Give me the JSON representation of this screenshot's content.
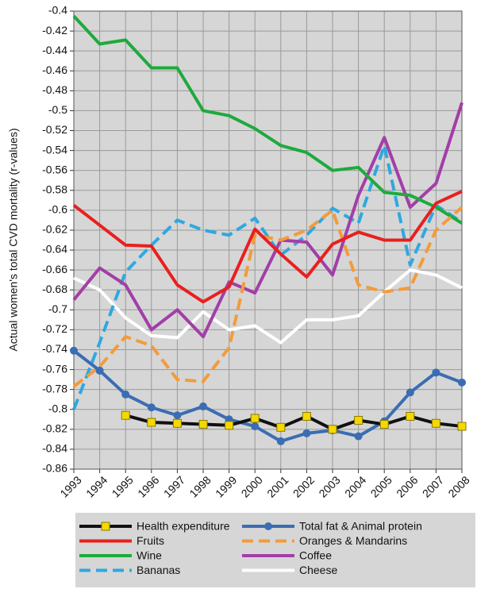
{
  "chart_data": {
    "type": "line",
    "y_label": "Actual women's total CVD mortality (r-values)",
    "categories": [
      "1993",
      "1994",
      "1995",
      "1996",
      "1997",
      "1998",
      "1999",
      "2000",
      "2001",
      "2002",
      "2003",
      "2004",
      "2005",
      "2006",
      "2007",
      "2008"
    ],
    "ylim": [
      -0.86,
      -0.4
    ],
    "yticks": [
      -0.4,
      -0.42,
      -0.44,
      -0.46,
      -0.48,
      -0.5,
      -0.52,
      -0.54,
      -0.56,
      -0.58,
      -0.6,
      -0.62,
      -0.64,
      -0.66,
      -0.68,
      -0.7,
      -0.72,
      -0.74,
      -0.76,
      -0.78,
      -0.8,
      -0.82,
      -0.84,
      -0.86
    ],
    "grid": true,
    "series": [
      {
        "name": "Health expenditure",
        "color": "#111111",
        "marker": "square",
        "marker_color": "#f5d800",
        "style": "solid",
        "values": [
          null,
          null,
          -0.806,
          -0.813,
          -0.814,
          -0.815,
          -0.816,
          -0.809,
          -0.818,
          -0.807,
          -0.82,
          -0.811,
          -0.815,
          -0.807,
          -0.814,
          -0.817
        ]
      },
      {
        "name": "Total fat & Animal protein",
        "color": "#3a6db3",
        "marker": "circle",
        "marker_color": "#3a6db3",
        "style": "solid",
        "values": [
          -0.741,
          -0.761,
          -0.785,
          -0.798,
          -0.806,
          -0.797,
          -0.81,
          -0.817,
          -0.832,
          -0.824,
          -0.821,
          -0.827,
          -0.812,
          -0.783,
          -0.763,
          -0.773
        ]
      },
      {
        "name": "Fruits",
        "color": "#e8201e",
        "style": "solid",
        "values": [
          -0.595,
          -0.615,
          -0.635,
          -0.636,
          -0.675,
          -0.692,
          -0.677,
          -0.619,
          -0.644,
          -0.667,
          -0.634,
          -0.622,
          -0.63,
          -0.63,
          -0.593,
          -0.581
        ]
      },
      {
        "name": "Oranges & Mandarins",
        "color": "#f39b3a",
        "style": "dashed",
        "values": [
          -0.777,
          -0.757,
          -0.727,
          -0.736,
          -0.77,
          -0.772,
          -0.738,
          -0.625,
          -0.63,
          -0.62,
          -0.6,
          -0.675,
          -0.682,
          -0.678,
          -0.62,
          -0.597
        ]
      },
      {
        "name": "Wine",
        "color": "#1eaa3c",
        "style": "solid",
        "values": [
          -0.405,
          -0.433,
          -0.429,
          -0.457,
          -0.457,
          -0.5,
          -0.505,
          -0.518,
          -0.535,
          -0.542,
          -0.56,
          -0.557,
          -0.582,
          -0.585,
          -0.597,
          -0.613
        ]
      },
      {
        "name": "Coffee",
        "color": "#a23ea8",
        "style": "solid",
        "values": [
          -0.69,
          -0.658,
          -0.675,
          -0.72,
          -0.7,
          -0.727,
          -0.672,
          -0.683,
          -0.63,
          -0.632,
          -0.665,
          -0.585,
          -0.527,
          -0.597,
          -0.573,
          -0.492
        ]
      },
      {
        "name": "Bananas",
        "color": "#2fa8e0",
        "style": "dashed",
        "values": [
          -0.8,
          -0.733,
          -0.662,
          -0.635,
          -0.61,
          -0.62,
          -0.625,
          -0.608,
          -0.645,
          -0.625,
          -0.598,
          -0.613,
          -0.535,
          -0.655,
          -0.595,
          -0.612
        ]
      },
      {
        "name": "Cheese",
        "color": "#ffffff",
        "style": "solid",
        "values": [
          -0.668,
          -0.68,
          -0.708,
          -0.726,
          -0.728,
          -0.702,
          -0.72,
          -0.716,
          -0.733,
          -0.71,
          -0.71,
          -0.706,
          -0.682,
          -0.66,
          -0.665,
          -0.678
        ]
      }
    ]
  }
}
